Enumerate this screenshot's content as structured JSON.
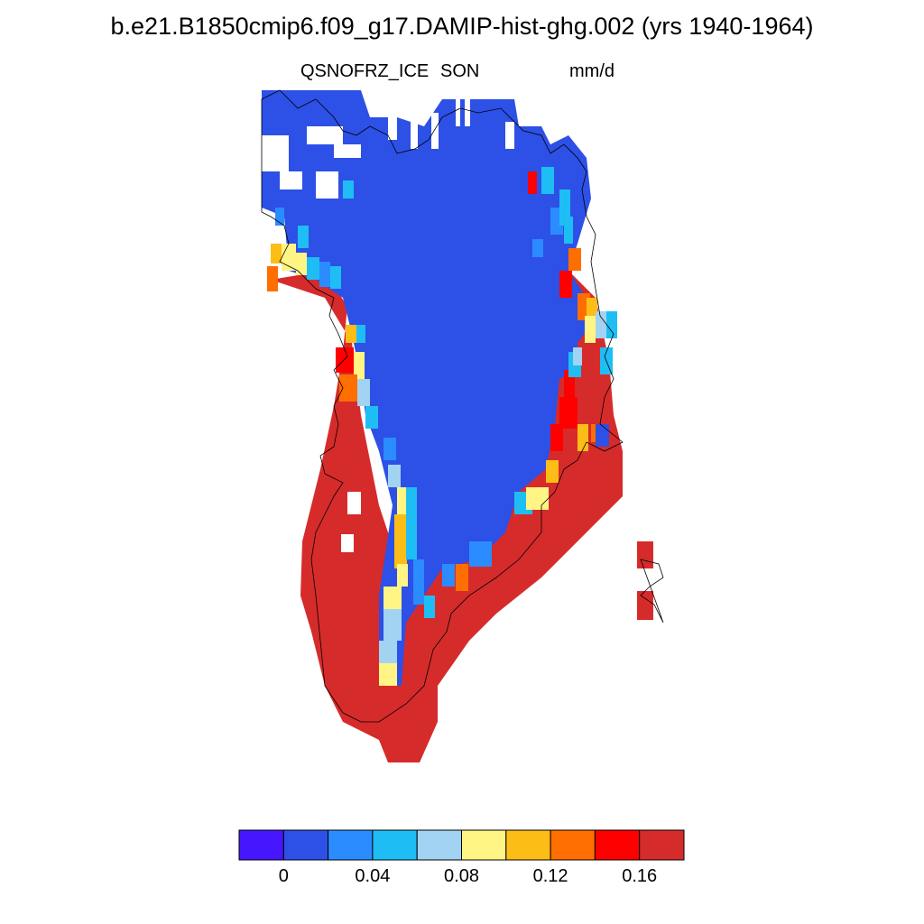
{
  "title": "b.e21.B1850cmip6.f09_g17.DAMIP-hist-ghg.002 (yrs 1940-1964)",
  "variable": "QSNOFRZ_ICE",
  "season": "SON",
  "units": "mm/d",
  "colorbar": {
    "colors": [
      "#4616ff",
      "#2d50e6",
      "#2a8cff",
      "#1ebef5",
      "#a3d3f2",
      "#fff584",
      "#fcbd16",
      "#ff6e00",
      "#ff0000",
      "#d62b2b"
    ],
    "tick_labels": [
      "0",
      "0.04",
      "0.08",
      "0.12",
      "0.16"
    ]
  },
  "colors": {
    "land_outline": "#000000",
    "background": "#ffffff"
  }
}
